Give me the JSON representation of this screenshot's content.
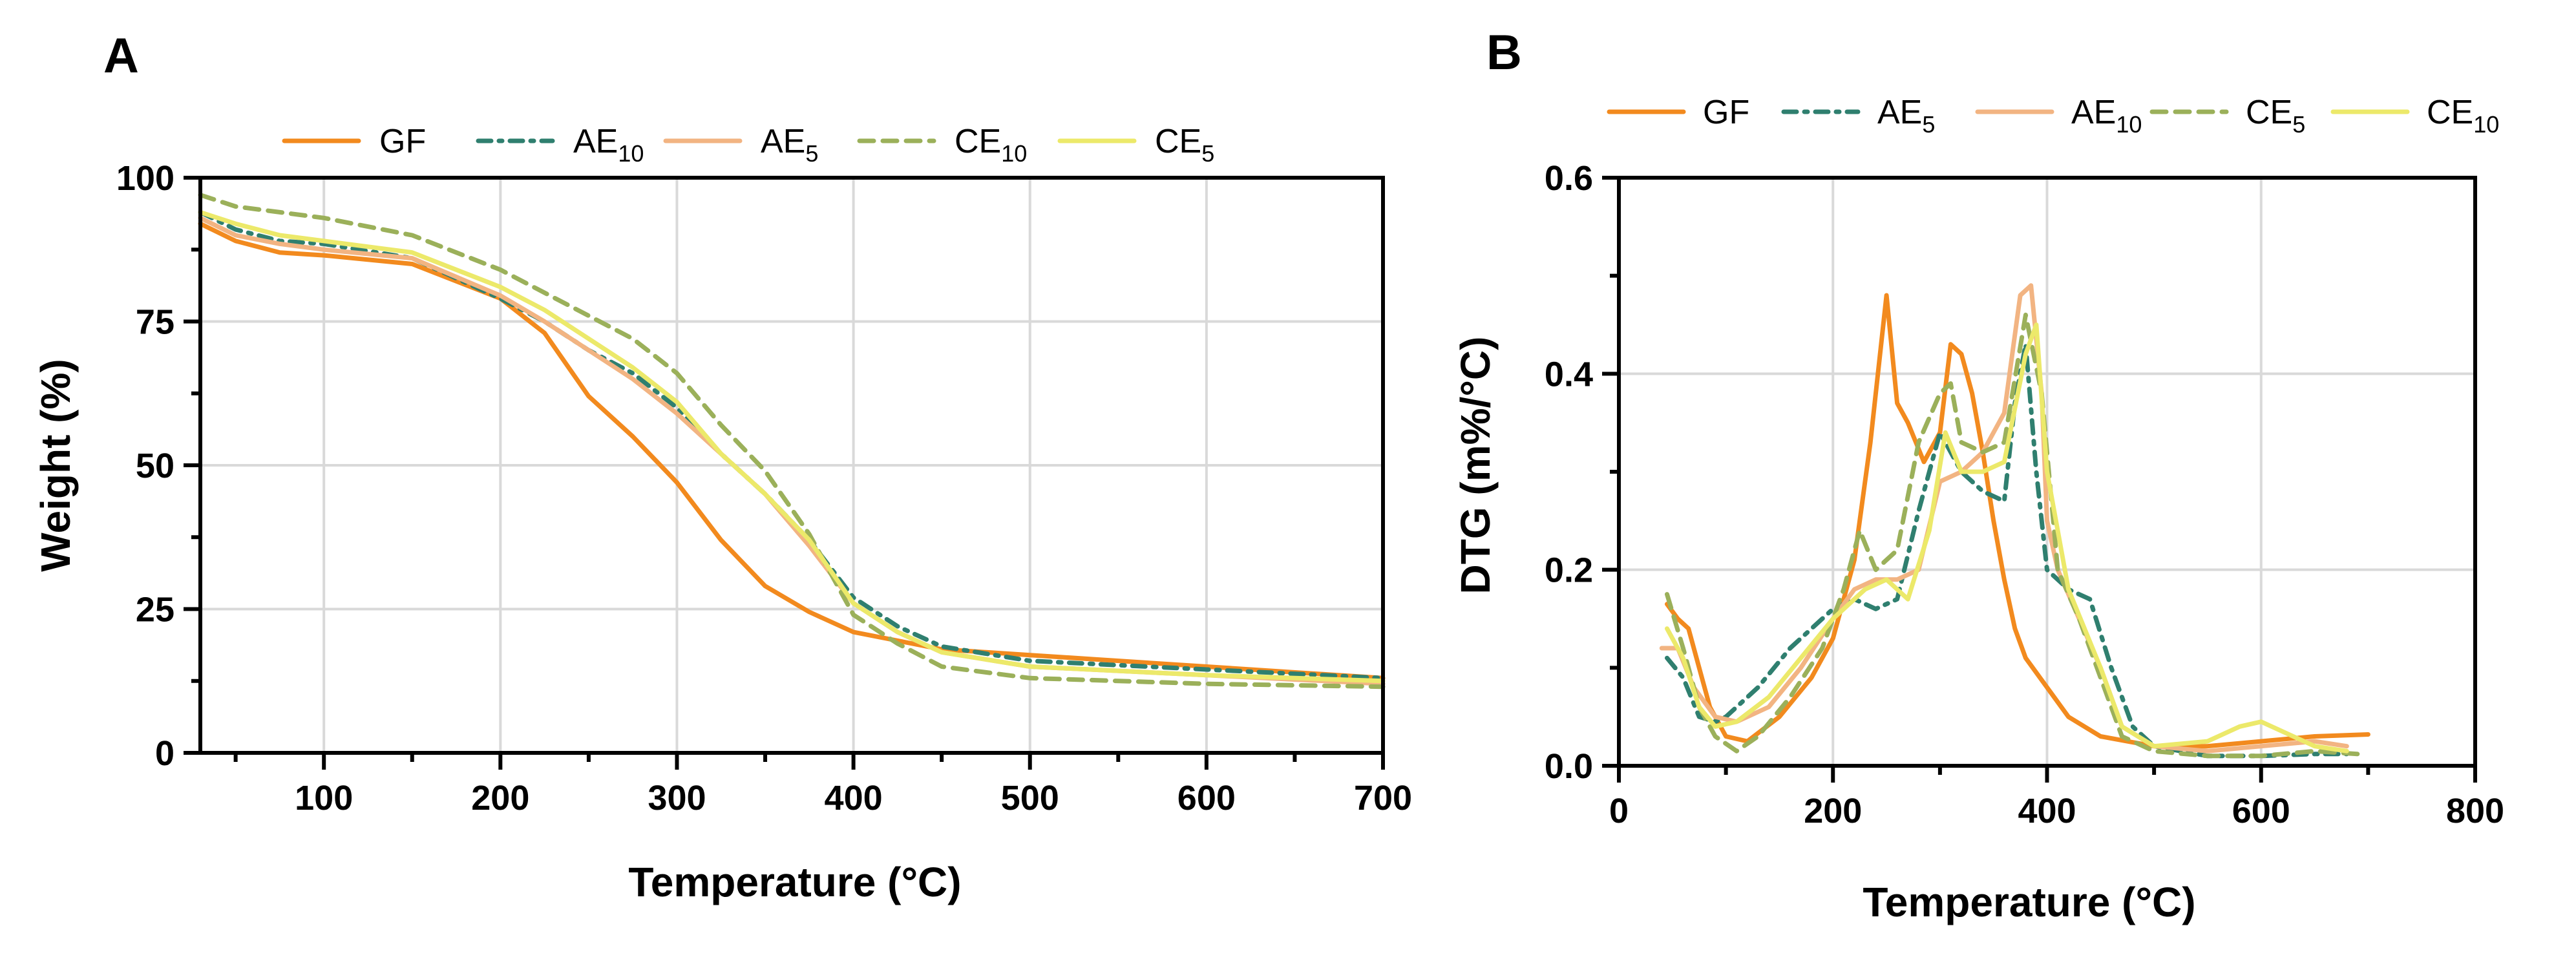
{
  "chart_data": [
    {
      "panel": "A",
      "type": "line",
      "title": "",
      "xlabel": "Temperature (°C)",
      "ylabel": "Weight (%)",
      "xlim": [
        30,
        700
      ],
      "ylim": [
        0,
        100
      ],
      "xticks": [
        100,
        200,
        300,
        400,
        500,
        600,
        700
      ],
      "yticks": [
        0,
        25,
        50,
        75,
        100
      ],
      "legend_position": "top",
      "series": [
        {
          "name": "GF",
          "base": "GF",
          "subscript": "",
          "color": "#f28a1e",
          "dash": "",
          "x": [
            30,
            50,
            75,
            100,
            150,
            200,
            225,
            250,
            275,
            300,
            325,
            350,
            375,
            400,
            450,
            500,
            600,
            700
          ],
          "y": [
            92,
            89,
            87,
            86.5,
            85,
            79,
            73,
            62,
            55,
            47,
            37,
            29,
            24.5,
            21,
            18,
            17,
            15,
            13
          ]
        },
        {
          "name": "AE10",
          "base": "AE",
          "subscript": "10",
          "color": "#2f7f6f",
          "dash": "20,12,5,12",
          "x": [
            30,
            50,
            75,
            100,
            150,
            200,
            225,
            250,
            275,
            300,
            325,
            350,
            375,
            400,
            425,
            450,
            500,
            600,
            700
          ],
          "y": [
            94,
            91,
            89,
            88.5,
            86,
            79,
            75,
            70,
            66,
            60,
            52,
            45,
            37,
            27,
            22,
            18.5,
            16,
            14.5,
            13
          ]
        },
        {
          "name": "AE5",
          "base": "AE",
          "subscript": "5",
          "color": "#f2b482",
          "dash": "",
          "x": [
            30,
            50,
            75,
            100,
            150,
            200,
            225,
            250,
            275,
            300,
            325,
            350,
            375,
            400,
            425,
            450,
            500,
            600,
            700
          ],
          "y": [
            93,
            90,
            88.5,
            87.5,
            86,
            79.5,
            75,
            70,
            65,
            59,
            52,
            45,
            36,
            26,
            21,
            17.5,
            15,
            13.5,
            12
          ]
        },
        {
          "name": "CE10",
          "base": "CE",
          "subscript": "10",
          "color": "#9bb05a",
          "dash": "22,14",
          "x": [
            30,
            50,
            75,
            100,
            150,
            200,
            225,
            250,
            275,
            300,
            325,
            350,
            375,
            400,
            425,
            450,
            500,
            600,
            700
          ],
          "y": [
            97,
            95,
            94,
            93,
            90,
            84,
            80,
            76,
            72,
            66,
            57,
            49,
            38,
            24,
            19,
            15,
            13,
            12,
            11.5
          ]
        },
        {
          "name": "CE5",
          "base": "CE",
          "subscript": "5",
          "color": "#ece96a",
          "dash": "",
          "x": [
            30,
            50,
            75,
            100,
            150,
            200,
            225,
            250,
            275,
            300,
            325,
            350,
            375,
            400,
            425,
            450,
            500,
            600,
            700
          ],
          "y": [
            94,
            92,
            90,
            89,
            87,
            81,
            77,
            72,
            67,
            61,
            52,
            45,
            37,
            26,
            21,
            17.5,
            15,
            13.5,
            12.5
          ]
        }
      ]
    },
    {
      "panel": "B",
      "type": "line",
      "title": "",
      "xlabel": "Temperature (°C)",
      "ylabel": "DTG (m%/°C)",
      "xlim": [
        0,
        800
      ],
      "ylim": [
        0,
        0.6
      ],
      "xticks": [
        0,
        200,
        400,
        600,
        800
      ],
      "yticks": [
        "0.0",
        "0.2",
        "0.4",
        "0.6"
      ],
      "legend_position": "top",
      "series": [
        {
          "name": "GF",
          "base": "GF",
          "subscript": "",
          "color": "#f28a1e",
          "dash": "",
          "x": [
            45,
            55,
            65,
            75,
            85,
            100,
            120,
            150,
            180,
            200,
            220,
            235,
            250,
            260,
            270,
            285,
            300,
            310,
            320,
            330,
            340,
            350,
            360,
            370,
            380,
            400,
            420,
            450,
            500,
            550,
            600,
            650,
            700
          ],
          "y": [
            0.165,
            0.15,
            0.14,
            0.1,
            0.06,
            0.03,
            0.025,
            0.05,
            0.09,
            0.13,
            0.21,
            0.33,
            0.48,
            0.37,
            0.35,
            0.31,
            0.34,
            0.43,
            0.42,
            0.38,
            0.32,
            0.25,
            0.19,
            0.14,
            0.11,
            0.08,
            0.05,
            0.03,
            0.02,
            0.02,
            0.025,
            0.03,
            0.032
          ]
        },
        {
          "name": "AE5",
          "base": "AE",
          "subscript": "5",
          "color": "#2f7f6f",
          "dash": "20,12,5,12",
          "x": [
            45,
            60,
            75,
            90,
            100,
            130,
            160,
            200,
            220,
            240,
            260,
            280,
            300,
            320,
            340,
            360,
            370,
            380,
            390,
            400,
            420,
            440,
            460,
            480,
            500,
            550,
            600,
            650,
            680
          ],
          "y": [
            0.11,
            0.09,
            0.05,
            0.045,
            0.05,
            0.08,
            0.12,
            0.16,
            0.17,
            0.16,
            0.17,
            0.26,
            0.34,
            0.3,
            0.28,
            0.27,
            0.37,
            0.43,
            0.3,
            0.2,
            0.18,
            0.17,
            0.1,
            0.04,
            0.02,
            0.01,
            0.01,
            0.012,
            0.012
          ]
        },
        {
          "name": "AE10",
          "base": "AE",
          "subscript": "10",
          "color": "#f2b482",
          "dash": "",
          "x": [
            40,
            55,
            70,
            90,
            110,
            140,
            170,
            200,
            220,
            240,
            260,
            280,
            300,
            320,
            340,
            360,
            375,
            385,
            395,
            400,
            410,
            430,
            450,
            470,
            500,
            550,
            600,
            650,
            680
          ],
          "y": [
            0.12,
            0.12,
            0.08,
            0.05,
            0.045,
            0.06,
            0.1,
            0.15,
            0.18,
            0.19,
            0.19,
            0.2,
            0.29,
            0.3,
            0.32,
            0.36,
            0.48,
            0.49,
            0.38,
            0.25,
            0.2,
            0.15,
            0.1,
            0.04,
            0.02,
            0.015,
            0.02,
            0.025,
            0.02
          ]
        },
        {
          "name": "CE5",
          "base": "CE",
          "subscript": "5",
          "color": "#9bb05a",
          "dash": "22,14",
          "x": [
            45,
            60,
            75,
            90,
            110,
            130,
            160,
            190,
            210,
            225,
            240,
            260,
            280,
            300,
            310,
            320,
            340,
            360,
            380,
            395,
            410,
            430,
            450,
            470,
            500,
            550,
            600,
            650,
            690
          ],
          "y": [
            0.175,
            0.12,
            0.06,
            0.03,
            0.015,
            0.03,
            0.07,
            0.12,
            0.18,
            0.24,
            0.2,
            0.22,
            0.33,
            0.38,
            0.39,
            0.33,
            0.32,
            0.33,
            0.46,
            0.38,
            0.2,
            0.15,
            0.09,
            0.03,
            0.015,
            0.01,
            0.01,
            0.015,
            0.012
          ]
        },
        {
          "name": "CE10",
          "base": "CE",
          "subscript": "10",
          "color": "#ece96a",
          "dash": "",
          "x": [
            45,
            60,
            75,
            90,
            110,
            140,
            170,
            200,
            230,
            250,
            270,
            290,
            305,
            320,
            340,
            360,
            380,
            390,
            400,
            420,
            450,
            470,
            500,
            550,
            580,
            600,
            620,
            650,
            680
          ],
          "y": [
            0.14,
            0.11,
            0.06,
            0.04,
            0.045,
            0.07,
            0.11,
            0.15,
            0.18,
            0.19,
            0.17,
            0.24,
            0.34,
            0.3,
            0.3,
            0.31,
            0.42,
            0.45,
            0.3,
            0.18,
            0.1,
            0.04,
            0.02,
            0.025,
            0.04,
            0.045,
            0.035,
            0.02,
            0.015
          ]
        }
      ]
    }
  ]
}
